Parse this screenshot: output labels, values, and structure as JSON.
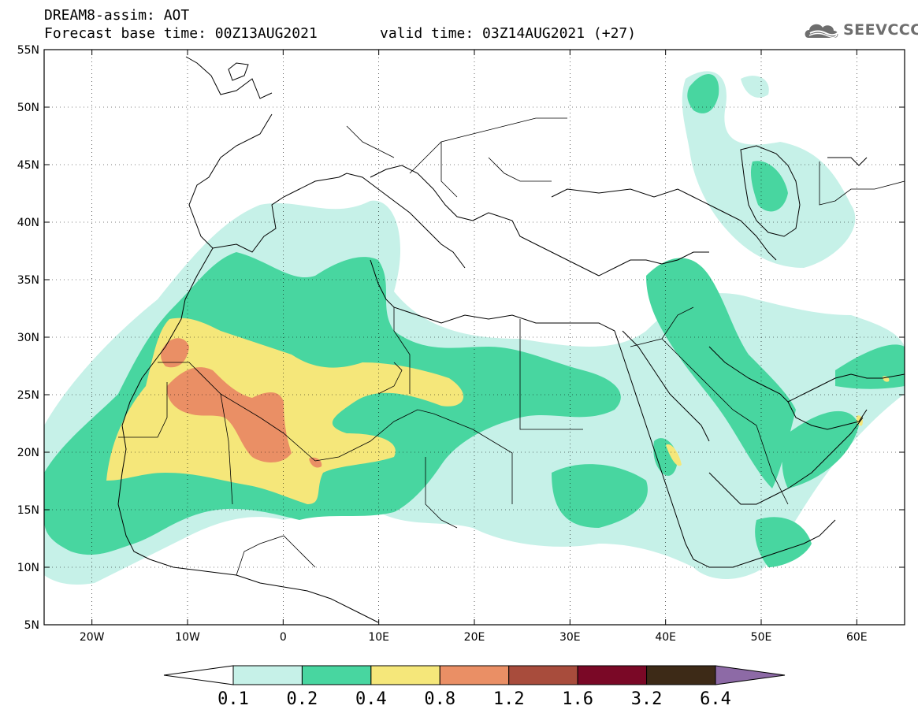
{
  "header": {
    "line1": "DREAM8-assim: AOT",
    "base_time": "Forecast base time: 00Z13AUG2021",
    "valid_time": "valid time: 03Z14AUG2021 (+27)"
  },
  "logo": {
    "text": "SEEVCCC",
    "icon": "cloud-icon"
  },
  "map": {
    "lat_range": [
      5,
      55
    ],
    "lon_range": [
      -25,
      65
    ],
    "lat_ticks": [
      "55N",
      "50N",
      "45N",
      "40N",
      "35N",
      "30N",
      "25N",
      "20N",
      "15N",
      "10N",
      "5N"
    ],
    "lon_ticks": [
      "20W",
      "10W",
      "0",
      "10E",
      "20E",
      "30E",
      "40E",
      "50E",
      "60E"
    ]
  },
  "colorbar": {
    "labels": [
      "0.1",
      "0.2",
      "0.4",
      "0.8",
      "1.2",
      "1.6",
      "3.2",
      "6.4"
    ],
    "colors": [
      "#ffffff",
      "#c6f1e8",
      "#48d6a0",
      "#f5e77a",
      "#ea8f65",
      "#a84c3c",
      "#7a0826",
      "#3d2a17",
      "#8d6aa6"
    ]
  }
}
